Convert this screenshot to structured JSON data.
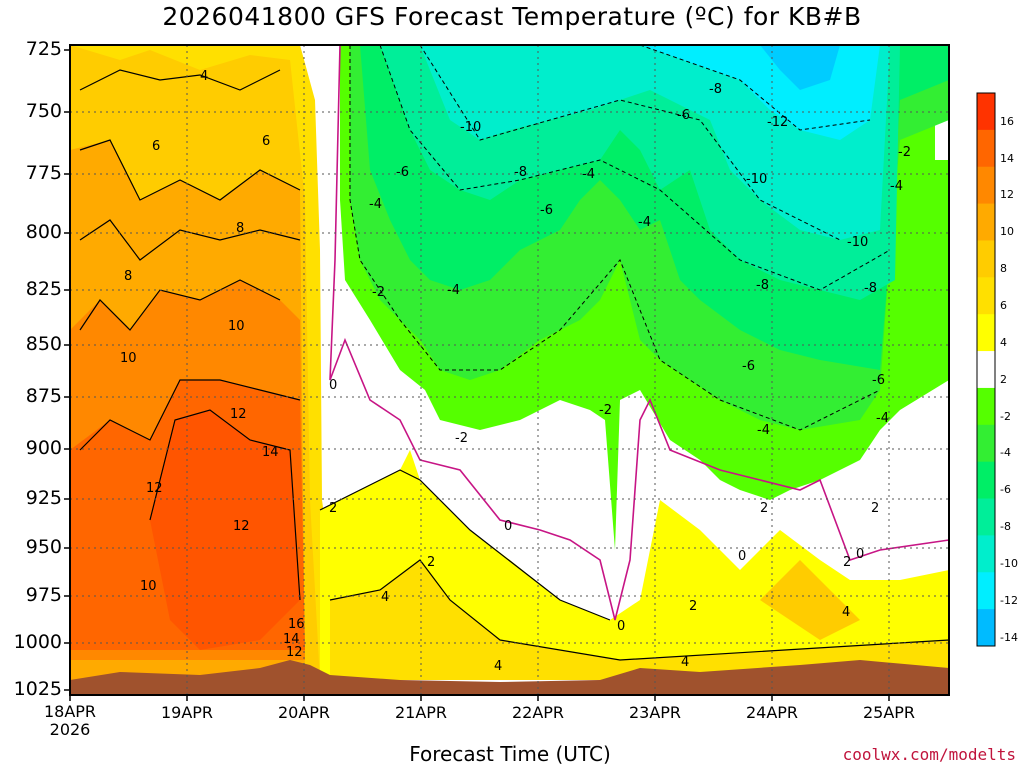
{
  "chart_data": {
    "type": "heatmap",
    "title": "2026041800 GFS Forecast Temperature (ºC) for KB#B",
    "xlabel": "Forecast Time (UTC)",
    "ylabel": "",
    "credit": "coolwx.com/modelts",
    "y_axis": {
      "label": "",
      "ticks": [
        725,
        750,
        775,
        800,
        825,
        850,
        875,
        900,
        925,
        950,
        975,
        1000,
        1025
      ],
      "inverted": true,
      "ylim": [
        725,
        1025
      ]
    },
    "x_axis": {
      "ticks": [
        "18APR\n2026",
        "19APR",
        "20APR",
        "21APR",
        "22APR",
        "23APR",
        "24APR",
        "25APR"
      ],
      "xlim_days": [
        0,
        7.5
      ]
    },
    "colorbar": {
      "levels": [
        16,
        14,
        12,
        10,
        8,
        6,
        4,
        2,
        -2,
        -4,
        -6,
        -8,
        -10,
        -12,
        -14
      ],
      "colors": [
        "#ff3300",
        "#ff6600",
        "#ff8800",
        "#ffaa00",
        "#ffcc00",
        "#ffe000",
        "#ffff00",
        "#ffffff",
        "#55ff00",
        "#33ee33",
        "#00ee66",
        "#00ee99",
        "#00eecc",
        "#00eeff",
        "#00bbff"
      ]
    },
    "grid": true,
    "contour_labels": [
      "4",
      "6",
      "8",
      "10",
      "12",
      "14",
      "16",
      "2",
      "0",
      "-2",
      "-4",
      "-6",
      "-8",
      "-10",
      "-12"
    ]
  }
}
